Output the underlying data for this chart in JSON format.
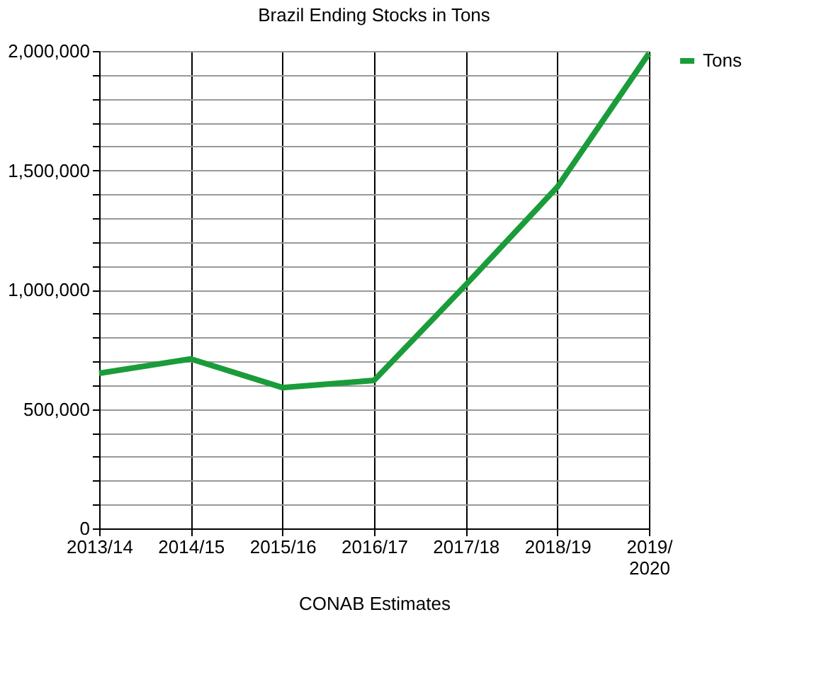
{
  "chart_data": {
    "type": "line",
    "title": "Brazil Ending Stocks in Tons",
    "xlabel": "CONAB Estimates",
    "categories": [
      "2013/14",
      "2014/15",
      "2015/16",
      "2016/17",
      "2017/18",
      "2018/19",
      "2019/2020"
    ],
    "series": [
      {
        "name": "Tons",
        "color": "#1a9c3a",
        "values": [
          650000,
          710000,
          590000,
          620000,
          1020000,
          1430000,
          1990000
        ]
      }
    ],
    "ylim": [
      0,
      2000000
    ],
    "yticks": [
      0,
      {
        "value": 100000,
        "label": null
      },
      {
        "value": 200000,
        "label": null
      },
      {
        "value": 300000,
        "label": null
      },
      {
        "value": 400000,
        "label": null
      },
      {
        "value": 500000,
        "label": "500,000"
      },
      {
        "value": 600000,
        "label": null
      },
      {
        "value": 700000,
        "label": null
      },
      {
        "value": 800000,
        "label": null
      },
      {
        "value": 900000,
        "label": null
      },
      {
        "value": 1000000,
        "label": "1,000,000"
      },
      {
        "value": 1100000,
        "label": null
      },
      {
        "value": 1200000,
        "label": null
      },
      {
        "value": 1300000,
        "label": null
      },
      {
        "value": 1400000,
        "label": null
      },
      {
        "value": 1500000,
        "label": "1,500,000"
      },
      {
        "value": 1600000,
        "label": null
      },
      {
        "value": 1700000,
        "label": null
      },
      {
        "value": 1800000,
        "label": null
      },
      {
        "value": 1900000,
        "label": null
      },
      {
        "value": 2000000,
        "label": "2,000,000"
      }
    ],
    "grid": true,
    "legend": "right",
    "marker": "none",
    "line_style": "solid"
  }
}
